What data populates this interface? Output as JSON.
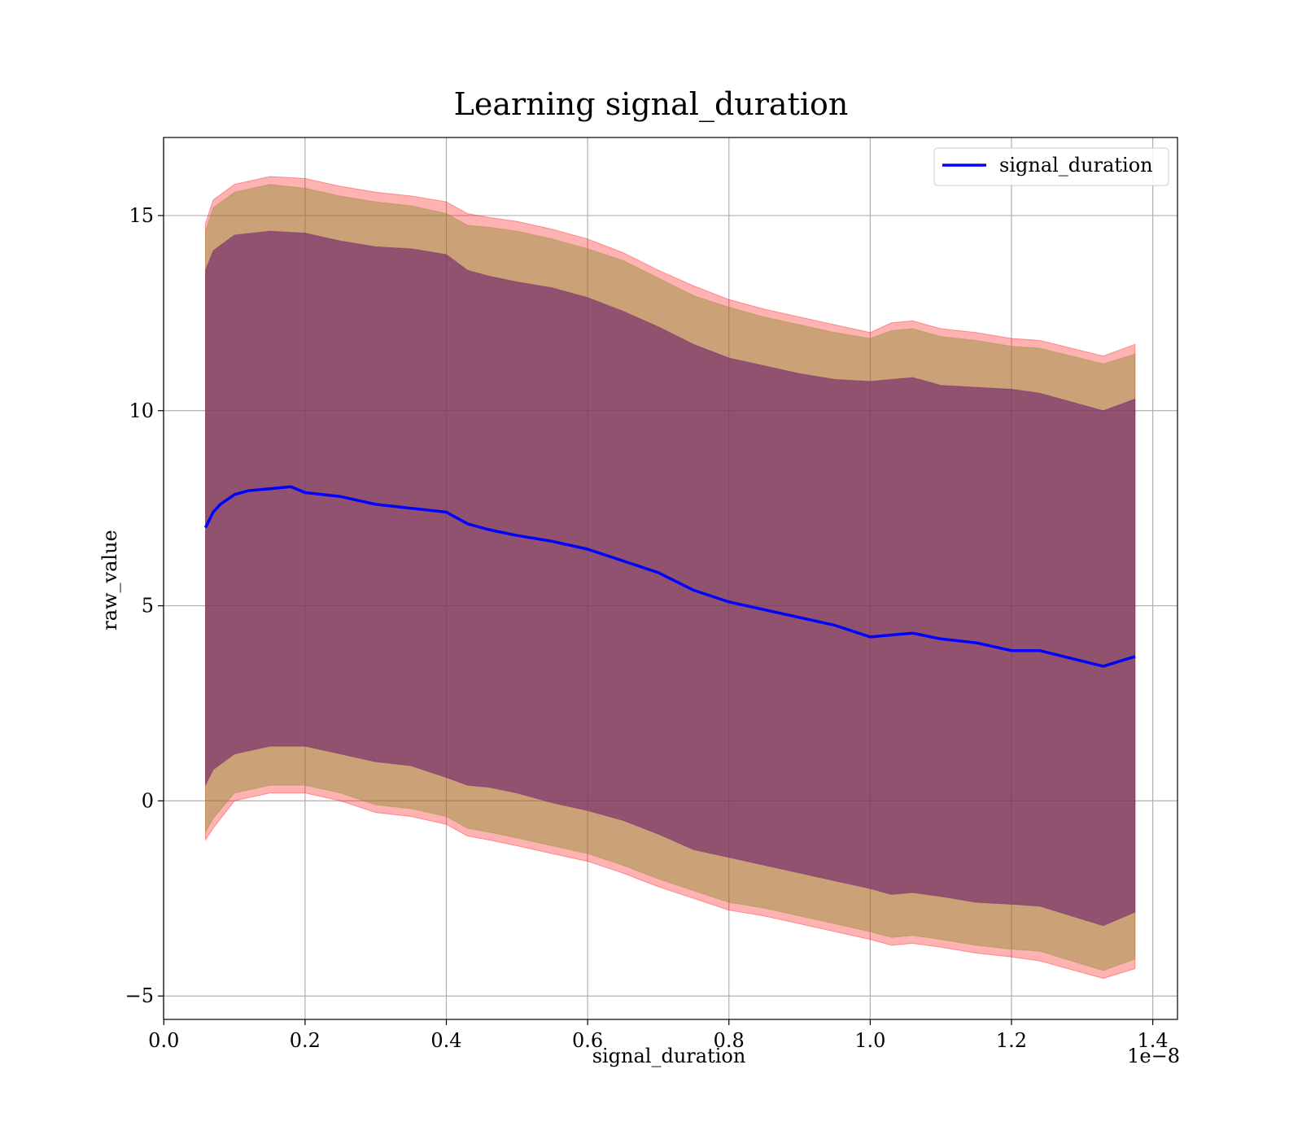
{
  "chart_data": {
    "type": "line",
    "title": "Learning signal_duration",
    "xlabel": "signal_duration",
    "ylabel": "raw_value",
    "x_offset_label": "1e−8",
    "xlim": [
      -0.0003,
      1.435
    ],
    "ylim": [
      -5.6,
      17.0
    ],
    "x_ticks": [
      0.0,
      0.2,
      0.4,
      0.6,
      0.8,
      1.0,
      1.2,
      1.4
    ],
    "x_tick_labels": [
      "0.0",
      "0.2",
      "0.4",
      "0.6",
      "0.8",
      "1.0",
      "1.2",
      "1.4"
    ],
    "y_ticks": [
      -5,
      0,
      5,
      10,
      15
    ],
    "y_tick_labels": [
      "−5",
      "0",
      "5",
      "10",
      "15"
    ],
    "grid": true,
    "legend_position": "top-right",
    "colors": {
      "line": "#0000ff",
      "outer_band": "#ff0000",
      "middle_band": "#8b8b30",
      "inner_band": "#6b1e6b"
    },
    "series": [
      {
        "name": "signal_duration",
        "x": [
          0.059,
          0.07,
          0.08,
          0.1,
          0.12,
          0.15,
          0.18,
          0.2,
          0.25,
          0.3,
          0.35,
          0.4,
          0.43,
          0.46,
          0.5,
          0.55,
          0.6,
          0.65,
          0.7,
          0.75,
          0.8,
          0.85,
          0.9,
          0.95,
          1.0,
          1.03,
          1.06,
          1.1,
          1.15,
          1.2,
          1.24,
          1.33,
          1.375
        ],
        "y": [
          7.0,
          7.4,
          7.6,
          7.85,
          7.95,
          8.0,
          8.05,
          7.9,
          7.8,
          7.6,
          7.5,
          7.4,
          7.1,
          6.95,
          6.8,
          6.65,
          6.45,
          6.15,
          5.85,
          5.4,
          5.1,
          4.9,
          4.7,
          4.5,
          4.2,
          4.25,
          4.3,
          4.15,
          4.05,
          3.85,
          3.85,
          3.45,
          3.7
        ]
      }
    ],
    "bands": [
      {
        "x": [
          0.059,
          0.07,
          0.1,
          0.15,
          0.2,
          0.25,
          0.3,
          0.35,
          0.4,
          0.43,
          0.46,
          0.5,
          0.55,
          0.6,
          0.65,
          0.7,
          0.75,
          0.8,
          0.85,
          0.9,
          0.95,
          1.0,
          1.03,
          1.06,
          1.1,
          1.15,
          1.2,
          1.24,
          1.33,
          1.375
        ],
        "upper": [
          14.8,
          15.4,
          15.8,
          16.0,
          15.95,
          15.75,
          15.6,
          15.5,
          15.35,
          15.05,
          14.95,
          14.85,
          14.65,
          14.4,
          14.05,
          13.6,
          13.2,
          12.85,
          12.6,
          12.4,
          12.2,
          12.0,
          12.25,
          12.3,
          12.1,
          12.0,
          11.85,
          11.8,
          11.4,
          11.7
        ],
        "lower": [
          -1.0,
          -0.7,
          0.0,
          0.2,
          0.2,
          0.0,
          -0.3,
          -0.4,
          -0.6,
          -0.9,
          -1.0,
          -1.15,
          -1.35,
          -1.55,
          -1.85,
          -2.2,
          -2.5,
          -2.8,
          -2.95,
          -3.15,
          -3.35,
          -3.55,
          -3.7,
          -3.65,
          -3.75,
          -3.9,
          -4.0,
          -4.1,
          -4.55,
          -4.3
        ]
      },
      {
        "x": [
          0.059,
          0.07,
          0.1,
          0.15,
          0.2,
          0.25,
          0.3,
          0.35,
          0.4,
          0.43,
          0.46,
          0.5,
          0.55,
          0.6,
          0.65,
          0.7,
          0.75,
          0.8,
          0.85,
          0.9,
          0.95,
          1.0,
          1.03,
          1.06,
          1.1,
          1.15,
          1.2,
          1.24,
          1.33,
          1.375
        ],
        "upper": [
          14.6,
          15.2,
          15.6,
          15.8,
          15.7,
          15.5,
          15.35,
          15.25,
          15.05,
          14.75,
          14.7,
          14.6,
          14.4,
          14.15,
          13.85,
          13.4,
          12.95,
          12.65,
          12.4,
          12.2,
          12.0,
          11.85,
          12.05,
          12.1,
          11.9,
          11.8,
          11.65,
          11.6,
          11.2,
          11.45
        ],
        "lower": [
          -0.8,
          -0.45,
          0.2,
          0.4,
          0.4,
          0.2,
          -0.1,
          -0.2,
          -0.4,
          -0.7,
          -0.8,
          -0.95,
          -1.15,
          -1.35,
          -1.65,
          -2.0,
          -2.3,
          -2.6,
          -2.75,
          -2.95,
          -3.15,
          -3.35,
          -3.5,
          -3.45,
          -3.55,
          -3.7,
          -3.8,
          -3.85,
          -4.35,
          -4.05
        ]
      },
      {
        "x": [
          0.059,
          0.07,
          0.1,
          0.15,
          0.2,
          0.25,
          0.3,
          0.35,
          0.4,
          0.43,
          0.46,
          0.5,
          0.55,
          0.6,
          0.65,
          0.7,
          0.75,
          0.8,
          0.85,
          0.9,
          0.95,
          1.0,
          1.03,
          1.06,
          1.1,
          1.15,
          1.2,
          1.24,
          1.33,
          1.375
        ],
        "upper": [
          13.6,
          14.1,
          14.5,
          14.6,
          14.55,
          14.35,
          14.2,
          14.15,
          14.0,
          13.6,
          13.45,
          13.3,
          13.15,
          12.9,
          12.55,
          12.15,
          11.7,
          11.35,
          11.15,
          10.95,
          10.8,
          10.75,
          10.8,
          10.85,
          10.65,
          10.6,
          10.55,
          10.45,
          10.0,
          10.3
        ],
        "lower": [
          0.4,
          0.8,
          1.2,
          1.4,
          1.4,
          1.2,
          1.0,
          0.9,
          0.6,
          0.4,
          0.35,
          0.2,
          -0.05,
          -0.25,
          -0.5,
          -0.85,
          -1.25,
          -1.45,
          -1.65,
          -1.85,
          -2.05,
          -2.25,
          -2.4,
          -2.35,
          -2.45,
          -2.6,
          -2.65,
          -2.7,
          -3.2,
          -2.85
        ]
      }
    ],
    "legend": [
      {
        "label": "signal_duration",
        "color": "#0000ff"
      }
    ]
  }
}
